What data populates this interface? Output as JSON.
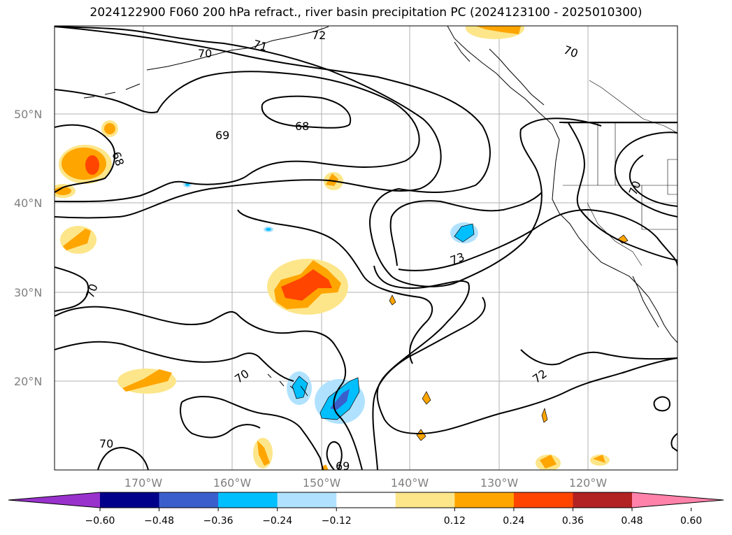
{
  "title": "2024122900 F060 200 hPa refract., river basin precipitation PC (2024123100 - 2025010300)",
  "lat_labels": [
    "50°N",
    "40°N",
    "30°N",
    "20°N"
  ],
  "lon_labels": [
    "170°W",
    "160°W",
    "150°W",
    "140°W",
    "130°W",
    "120°W"
  ],
  "contour_labels": [
    "72",
    "71",
    "70",
    "70",
    "69",
    "68",
    "68",
    "70",
    "73",
    "70",
    "70",
    "72",
    "70",
    "69"
  ],
  "colorbar": {
    "ticks": [
      "−0.60",
      "−0.48",
      "−0.36",
      "−0.24",
      "−0.12",
      "0.12",
      "0.24",
      "0.36",
      "0.48",
      "0.60"
    ],
    "colors": [
      "#9932cc",
      "#00008b",
      "#3a5fcd",
      "#00bfff",
      "#b0e2ff",
      "#ffffff",
      "#fde68a",
      "#ffa500",
      "#ff4500",
      "#b22222",
      "#ff82ab"
    ]
  }
}
